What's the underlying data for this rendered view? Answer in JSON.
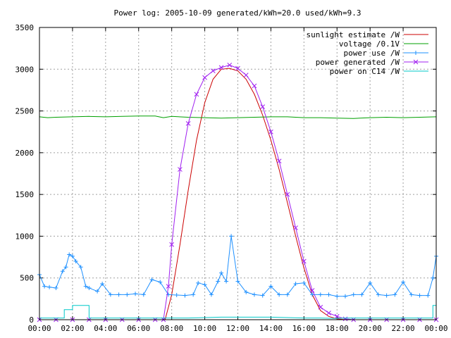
{
  "chart_data": {
    "type": "line",
    "title": "Power log: 2005-10-09 generated/kWh=20.0 used/kWh=9.3",
    "xlabel": "",
    "ylabel": "",
    "xlim": [
      0,
      24
    ],
    "ylim": [
      0,
      3500
    ],
    "xticks": [
      0,
      2,
      4,
      6,
      8,
      10,
      12,
      14,
      16,
      18,
      20,
      22,
      24
    ],
    "xtick_labels": [
      "00:00",
      "02:00",
      "04:00",
      "06:00",
      "08:00",
      "10:00",
      "12:00",
      "14:00",
      "16:00",
      "18:00",
      "20:00",
      "22:00",
      "00:00"
    ],
    "yticks": [
      0,
      500,
      1000,
      1500,
      2000,
      2500,
      3000,
      3500
    ],
    "ytick_labels": [
      "0",
      "500",
      "1000",
      "1500",
      "2000",
      "2500",
      "3000",
      "3500"
    ],
    "grid": true,
    "legend_position": "top-right",
    "series": [
      {
        "name": "sunlight estimate /W",
        "color": "#cc0000",
        "marker": "none",
        "x": [
          0,
          7.6,
          8.0,
          8.5,
          9.0,
          9.5,
          10.0,
          10.5,
          11.0,
          11.5,
          12.0,
          12.5,
          13.0,
          13.5,
          14.0,
          14.5,
          15.0,
          15.5,
          16.0,
          16.5,
          17.0,
          17.5,
          18.0,
          18.5,
          24
        ],
        "y": [
          0,
          0,
          300,
          900,
          1550,
          2150,
          2600,
          2880,
          3000,
          3010,
          2980,
          2880,
          2700,
          2450,
          2150,
          1800,
          1400,
          1000,
          620,
          300,
          110,
          40,
          10,
          0,
          0
        ]
      },
      {
        "name": "voltage /0.1V",
        "color": "#00a000",
        "marker": "none",
        "x": [
          0,
          0.5,
          1,
          2,
          3,
          4,
          5,
          6,
          7,
          7.5,
          8,
          9,
          10,
          11,
          12,
          13,
          14,
          15,
          16,
          16.5,
          17,
          18,
          19,
          20,
          21,
          22,
          23,
          24
        ],
        "y": [
          2430,
          2420,
          2425,
          2430,
          2435,
          2430,
          2435,
          2440,
          2440,
          2420,
          2435,
          2425,
          2420,
          2415,
          2420,
          2425,
          2430,
          2430,
          2420,
          2420,
          2420,
          2415,
          2410,
          2420,
          2425,
          2420,
          2425,
          2430
        ]
      },
      {
        "name": "power use /W",
        "color": "#1e90ff",
        "marker": "plus",
        "x": [
          0,
          0.3,
          0.6,
          1.0,
          1.4,
          1.6,
          1.8,
          2.0,
          2.2,
          2.5,
          2.8,
          3.0,
          3.5,
          3.8,
          4.3,
          4.8,
          5.3,
          5.8,
          6.3,
          6.8,
          7.3,
          7.8,
          8.3,
          8.8,
          9.3,
          9.6,
          10.0,
          10.4,
          10.8,
          11.0,
          11.3,
          11.6,
          12.0,
          12.5,
          13.0,
          13.5,
          14.0,
          14.5,
          15.0,
          15.5,
          16.0,
          16.5,
          17.0,
          17.5,
          18.0,
          18.5,
          19.0,
          19.5,
          20.0,
          20.5,
          21.0,
          21.5,
          22.0,
          22.5,
          23.0,
          23.5,
          23.8,
          24.0
        ],
        "y": [
          540,
          400,
          390,
          380,
          580,
          630,
          780,
          760,
          700,
          630,
          400,
          380,
          340,
          430,
          300,
          300,
          300,
          310,
          300,
          480,
          450,
          300,
          295,
          290,
          300,
          440,
          420,
          300,
          460,
          560,
          460,
          1000,
          460,
          330,
          300,
          290,
          400,
          300,
          300,
          430,
          440,
          300,
          300,
          300,
          280,
          280,
          300,
          300,
          440,
          300,
          290,
          300,
          450,
          300,
          290,
          290,
          500,
          760
        ]
      },
      {
        "name": "power generated /W",
        "color": "#a020f0",
        "marker": "cross",
        "x": [
          0,
          1,
          2,
          3,
          4,
          5,
          6,
          7,
          7.5,
          7.8,
          8.0,
          8.5,
          9.0,
          9.5,
          10.0,
          10.5,
          11.0,
          11.5,
          12.0,
          12.5,
          13.0,
          13.5,
          14.0,
          14.5,
          15.0,
          15.5,
          16.0,
          16.5,
          17.0,
          17.5,
          18.0,
          18.5,
          19.0,
          20,
          21,
          22,
          23,
          24
        ],
        "y": [
          0,
          0,
          0,
          0,
          0,
          0,
          0,
          0,
          0,
          400,
          900,
          1800,
          2350,
          2700,
          2900,
          2980,
          3020,
          3050,
          3010,
          2930,
          2800,
          2550,
          2250,
          1900,
          1500,
          1100,
          700,
          350,
          150,
          80,
          40,
          10,
          0,
          0,
          0,
          0,
          0,
          0
        ]
      },
      {
        "name": "power on C14 /W",
        "color": "#00c8c8",
        "marker": "none",
        "x": [
          0,
          1.5,
          1.5,
          2.0,
          2.0,
          3.0,
          3.0,
          7.4,
          7.4,
          8.0,
          9.0,
          10.0,
          11.0,
          12.0,
          13.0,
          14.0,
          15.0,
          16.0,
          17.0,
          18.0,
          18.5,
          19.0,
          20.0,
          21.0,
          22.0,
          23.0,
          23.8,
          23.8,
          24.0
        ],
        "y": [
          20,
          20,
          120,
          120,
          170,
          170,
          20,
          20,
          20,
          20,
          20,
          25,
          30,
          30,
          30,
          30,
          25,
          20,
          20,
          15,
          20,
          20,
          20,
          20,
          20,
          20,
          20,
          170,
          170
        ]
      }
    ]
  }
}
